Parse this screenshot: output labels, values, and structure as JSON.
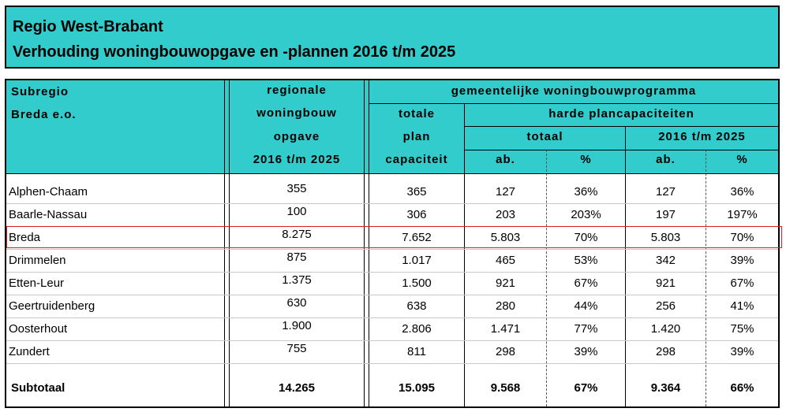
{
  "title": {
    "line1": "Regio West-Brabant",
    "line2": "Verhouding woningbouwopgave en -plannen 2016 t/m 2025"
  },
  "headers": {
    "subregio_1": "Subregio",
    "subregio_2": "Breda e.o.",
    "regionale_1": "regionale",
    "regionale_2": "woningbouw",
    "regionale_3": "opgave",
    "regionale_4": "2016 t/m 2025",
    "gemeentelijk": "gemeentelijke woningbouwprogramma",
    "totale_1": "totale",
    "totale_2": "plan",
    "totale_3": "capaciteit",
    "harde": "harde plancapaciteiten",
    "totaal": "totaal",
    "periode": "2016 t/m 2025",
    "ab1": "ab.",
    "pct1": "%",
    "ab2": "ab.",
    "pct2": "%"
  },
  "rows": [
    [
      "Alphen-Chaam",
      "355",
      "365",
      "127",
      "36%",
      "127",
      "36%"
    ],
    [
      "Baarle-Nassau",
      "100",
      "306",
      "203",
      "203%",
      "197",
      "197%"
    ],
    [
      "Breda",
      "8.275",
      "7.652",
      "5.803",
      "70%",
      "5.803",
      "70%"
    ],
    [
      "Drimmelen",
      "875",
      "1.017",
      "465",
      "53%",
      "342",
      "39%"
    ],
    [
      "Etten-Leur",
      "1.375",
      "1.500",
      "921",
      "67%",
      "921",
      "67%"
    ],
    [
      "Geertruidenberg",
      "630",
      "638",
      "280",
      "44%",
      "256",
      "41%"
    ],
    [
      "Oosterhout",
      "1.900",
      "2.806",
      "1.471",
      "77%",
      "1.420",
      "75%"
    ],
    [
      "Zundert",
      "755",
      "811",
      "298",
      "39%",
      "298",
      "39%"
    ]
  ],
  "subtotal": [
    "Subtotaal",
    "14.265",
    "15.095",
    "9.568",
    "67%",
    "9.364",
    "66%"
  ],
  "highlight_color": "#d42020",
  "header_color": "#33cccc"
}
